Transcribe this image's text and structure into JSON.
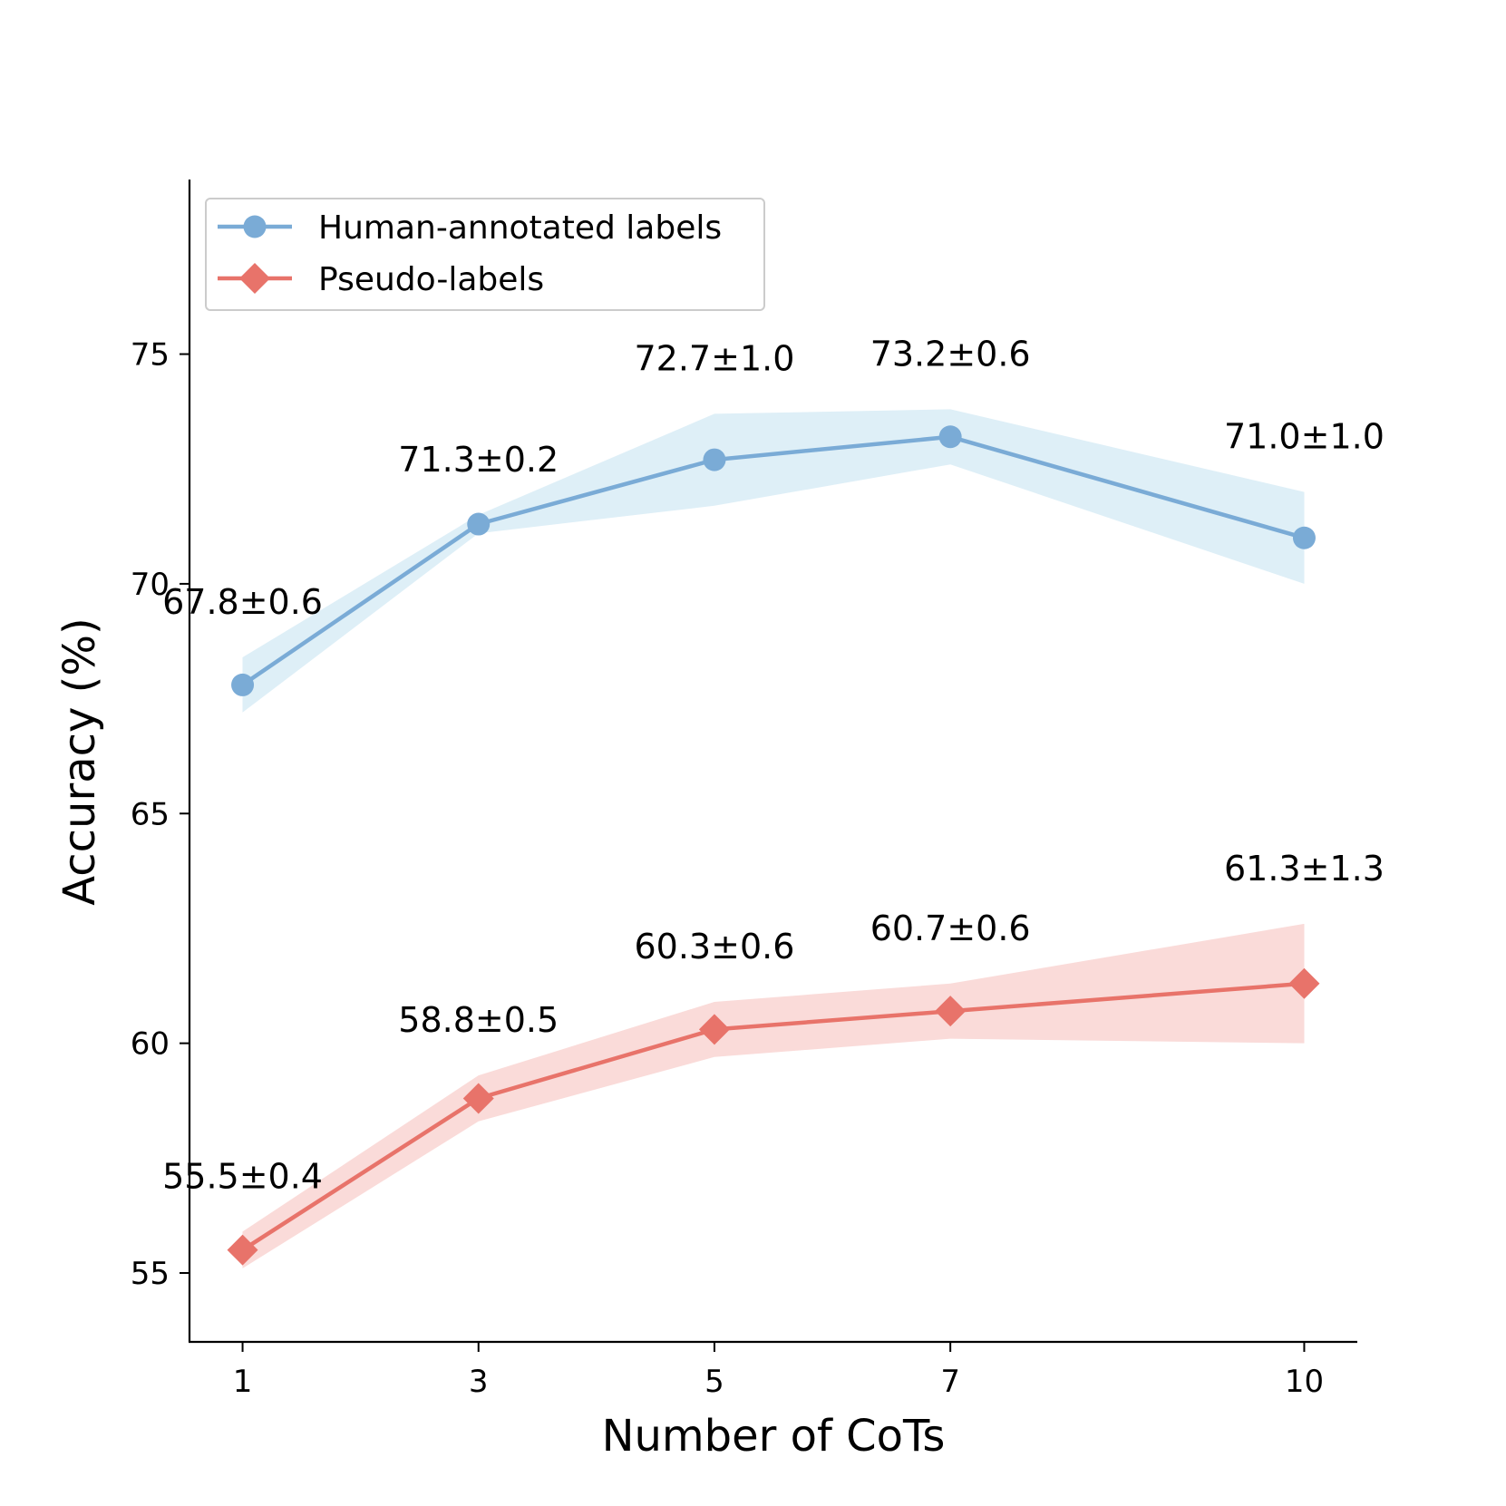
{
  "chart_data": {
    "type": "line",
    "title": "",
    "xlabel": "Number of CoTs",
    "ylabel": "Accuracy (%)",
    "x": [
      1,
      3,
      5,
      7,
      10
    ],
    "xticks": [
      "1",
      "3",
      "5",
      "7",
      "10"
    ],
    "xlim": [
      0.55,
      10.45
    ],
    "ylim": [
      53.5,
      78.8
    ],
    "yticks": [
      "55",
      "60",
      "65",
      "70",
      "75"
    ],
    "grid": false,
    "legend_position": "top-left",
    "series": [
      {
        "name": "Human-annotated labels",
        "marker": "circle",
        "color": "#7aabd6",
        "band_color": "#deeff7",
        "values": [
          67.8,
          71.3,
          72.7,
          73.2,
          71.0
        ],
        "errors": [
          0.6,
          0.2,
          1.0,
          0.6,
          1.0
        ],
        "labels": [
          "67.8±0.6",
          "71.3±0.2",
          "72.7±1.0",
          "73.2±0.6",
          "71.0±1.0"
        ]
      },
      {
        "name": "Pseudo-labels",
        "marker": "diamond",
        "color": "#e8736a",
        "band_color": "#fadbd9",
        "values": [
          55.5,
          58.8,
          60.3,
          60.7,
          61.3
        ],
        "errors": [
          0.4,
          0.5,
          0.6,
          0.6,
          1.3
        ],
        "labels": [
          "55.5±0.4",
          "58.8±0.5",
          "60.3±0.6",
          "60.7±0.6",
          "61.3±1.3"
        ]
      }
    ]
  }
}
